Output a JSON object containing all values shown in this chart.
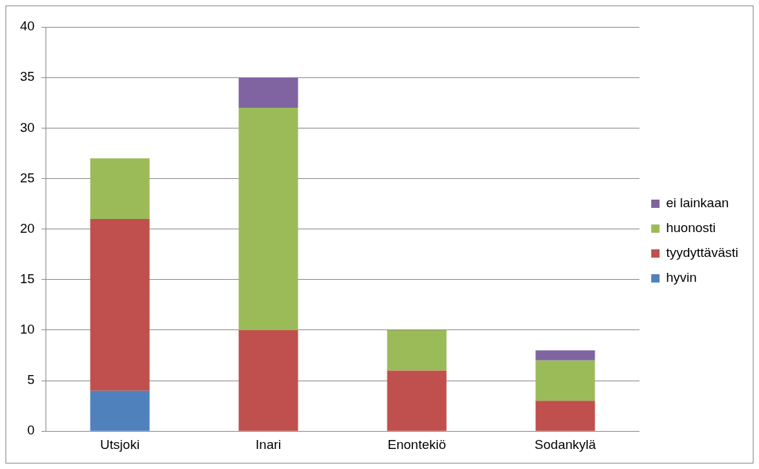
{
  "chart_data": {
    "type": "bar",
    "stacked": true,
    "categories": [
      "Utsjoki",
      "Inari",
      "Enontekiö",
      "Sodankylä"
    ],
    "series": [
      {
        "name": "hyvin",
        "color": "#4f81bd",
        "values": [
          4,
          0,
          0,
          0
        ]
      },
      {
        "name": "tyydyttävästi",
        "color": "#c0504d",
        "values": [
          17,
          10,
          6,
          3
        ]
      },
      {
        "name": "huonosti",
        "color": "#9bbb59",
        "values": [
          6,
          22,
          4,
          4
        ]
      },
      {
        "name": "ei lainkaan",
        "color": "#8064a2",
        "values": [
          0,
          3,
          0,
          1
        ]
      }
    ],
    "ylim": [
      0,
      40
    ],
    "yticks": [
      0,
      5,
      10,
      15,
      20,
      25,
      30,
      35,
      40
    ],
    "grid": "y",
    "legend": "right"
  }
}
